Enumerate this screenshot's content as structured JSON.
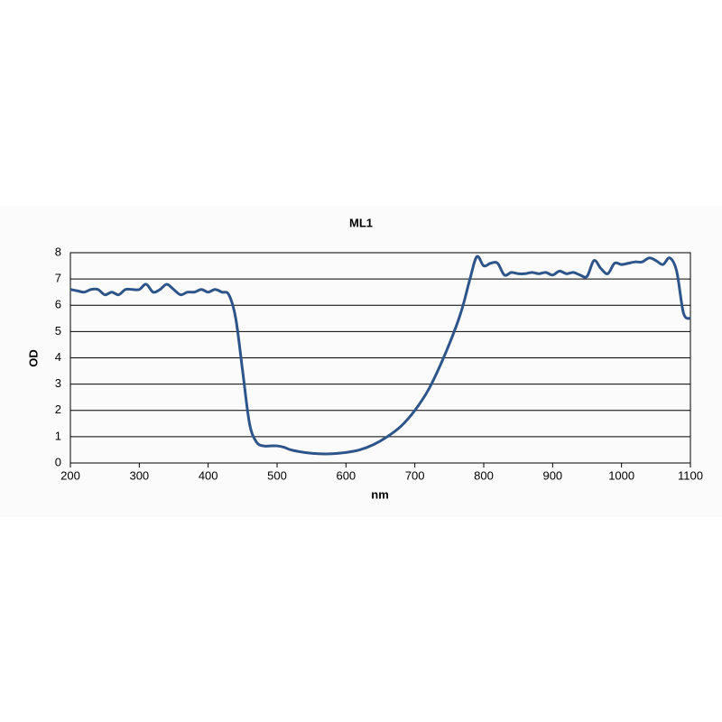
{
  "chart_data": {
    "type": "line",
    "title": "ML1",
    "x_label": "nm",
    "y_label": "OD",
    "x": [
      200,
      210,
      220,
      230,
      240,
      250,
      260,
      270,
      280,
      290,
      300,
      310,
      320,
      330,
      340,
      350,
      360,
      370,
      380,
      390,
      400,
      410,
      420,
      430,
      440,
      450,
      460,
      470,
      480,
      490,
      500,
      510,
      520,
      540,
      560,
      580,
      600,
      620,
      640,
      660,
      680,
      700,
      720,
      740,
      760,
      770,
      780,
      790,
      800,
      810,
      820,
      830,
      840,
      850,
      860,
      870,
      880,
      890,
      900,
      910,
      920,
      930,
      940,
      950,
      960,
      970,
      980,
      990,
      1000,
      1010,
      1020,
      1030,
      1040,
      1050,
      1060,
      1070,
      1080,
      1090,
      1100
    ],
    "series": [
      {
        "color": "#2e5589",
        "values": [
          6.6,
          6.55,
          6.5,
          6.6,
          6.6,
          6.4,
          6.5,
          6.4,
          6.6,
          6.6,
          6.6,
          6.8,
          6.5,
          6.6,
          6.8,
          6.6,
          6.4,
          6.5,
          6.5,
          6.6,
          6.5,
          6.6,
          6.5,
          6.4,
          5.5,
          3.5,
          1.5,
          0.8,
          0.65,
          0.65,
          0.65,
          0.6,
          0.5,
          0.4,
          0.35,
          0.35,
          0.4,
          0.5,
          0.7,
          1.0,
          1.4,
          2.0,
          2.8,
          3.9,
          5.2,
          6.0,
          7.0,
          7.85,
          7.5,
          7.6,
          7.6,
          7.15,
          7.25,
          7.2,
          7.2,
          7.25,
          7.2,
          7.25,
          7.15,
          7.3,
          7.2,
          7.25,
          7.15,
          7.1,
          7.7,
          7.4,
          7.2,
          7.6,
          7.55,
          7.6,
          7.65,
          7.65,
          7.8,
          7.7,
          7.55,
          7.8,
          7.3,
          5.7,
          5.5
        ]
      }
    ],
    "xlim": [
      200,
      1100
    ],
    "xticks": [
      200,
      300,
      400,
      500,
      600,
      700,
      800,
      900,
      1000,
      1100
    ],
    "ylim": [
      0,
      8
    ],
    "yticks": [
      0,
      1,
      2,
      3,
      4,
      5,
      6,
      7,
      8
    ],
    "grid": true
  }
}
